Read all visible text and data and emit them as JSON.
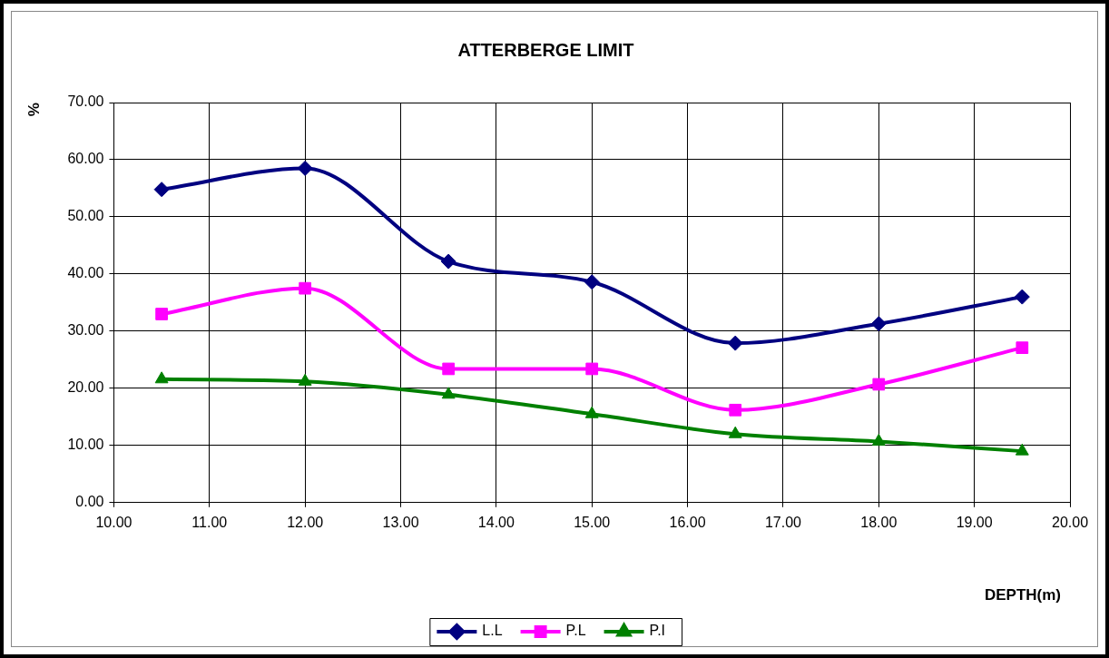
{
  "chart_data": {
    "type": "line",
    "title": "ATTERBERGE LIMIT",
    "xlabel": "DEPTH(m)",
    "ylabel": "%",
    "x": [
      10.5,
      12,
      13.5,
      15,
      16.5,
      18,
      19.5
    ],
    "series": [
      {
        "name": "L.L",
        "color": "#000080",
        "marker": "diamond",
        "values": [
          54.8,
          58.5,
          42.2,
          38.6,
          27.9,
          31.3,
          36.0
        ]
      },
      {
        "name": "P.L",
        "color": "#ff00ff",
        "marker": "square",
        "values": [
          33.0,
          37.5,
          23.4,
          23.4,
          16.2,
          20.7,
          27.1
        ]
      },
      {
        "name": "P.I",
        "color": "#008000",
        "marker": "triangle",
        "values": [
          21.6,
          21.2,
          18.9,
          15.5,
          12.0,
          10.7,
          9.0
        ]
      }
    ],
    "xlim": [
      10,
      20
    ],
    "xticks": [
      {
        "value": 10,
        "label": "10.00"
      },
      {
        "value": 11,
        "label": "11.00"
      },
      {
        "value": 12,
        "label": "12.00"
      },
      {
        "value": 13,
        "label": "13.00"
      },
      {
        "value": 14,
        "label": "14.00"
      },
      {
        "value": 15,
        "label": "15.00"
      },
      {
        "value": 16,
        "label": "16.00"
      },
      {
        "value": 17,
        "label": "17.00"
      },
      {
        "value": 18,
        "label": "18.00"
      },
      {
        "value": 19,
        "label": "19.00"
      },
      {
        "value": 20,
        "label": "20.00"
      }
    ],
    "ylim": [
      0,
      70
    ],
    "yticks": [
      {
        "value": 0,
        "label": "0.00"
      },
      {
        "value": 10,
        "label": "10.00"
      },
      {
        "value": 20,
        "label": "20.00"
      },
      {
        "value": 30,
        "label": "30.00"
      },
      {
        "value": 40,
        "label": "40.00"
      },
      {
        "value": 50,
        "label": "50.00"
      },
      {
        "value": 60,
        "label": "60.00"
      },
      {
        "value": 70,
        "label": "70.00"
      }
    ],
    "grid": true,
    "legend": "bottom",
    "line_style": "solid"
  }
}
